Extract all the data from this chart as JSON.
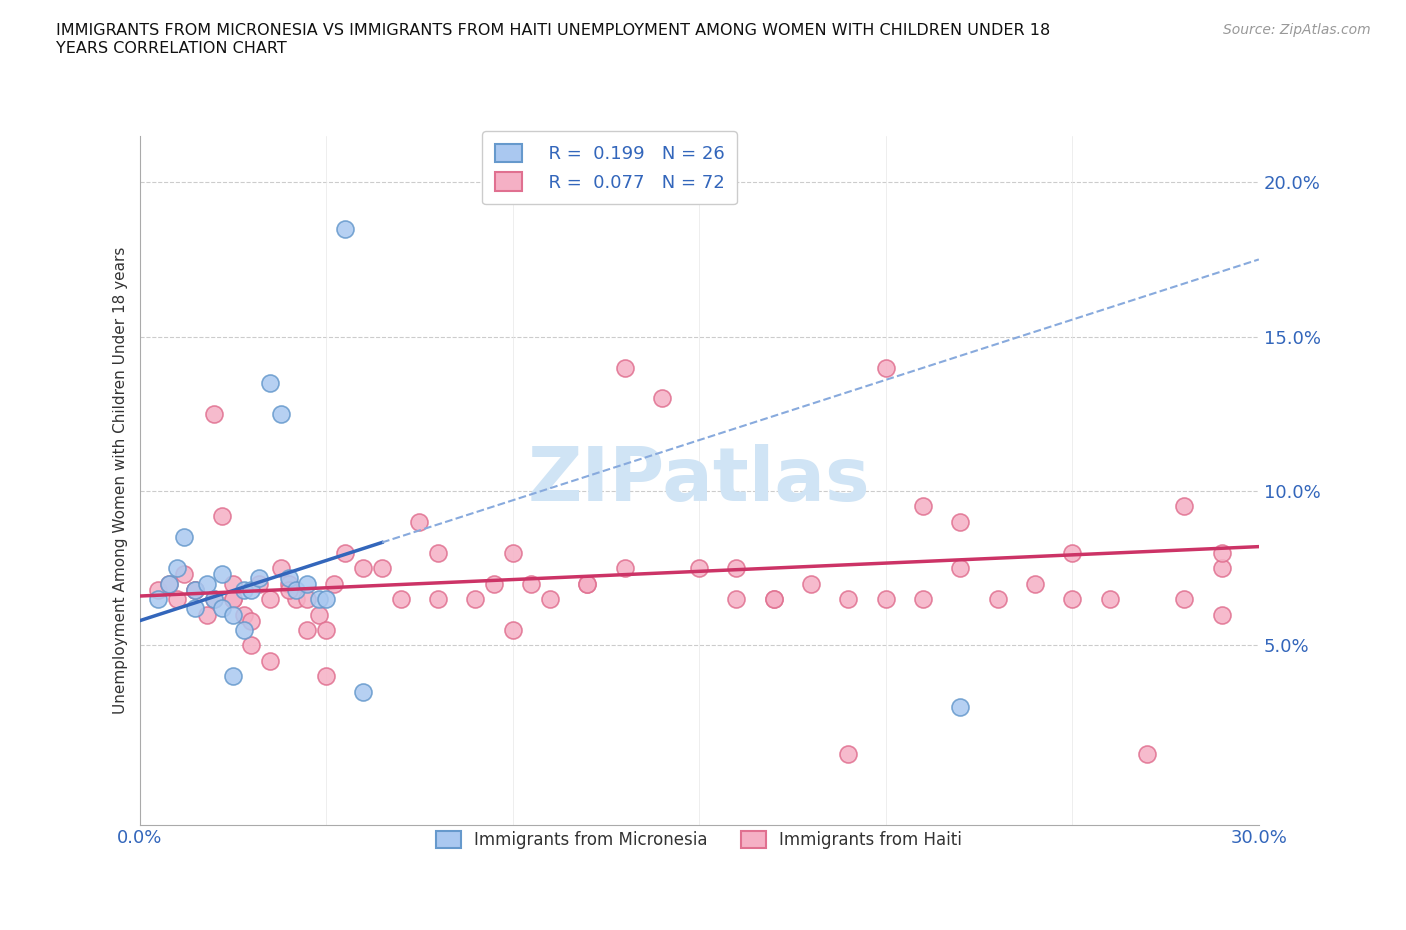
{
  "title": "IMMIGRANTS FROM MICRONESIA VS IMMIGRANTS FROM HAITI UNEMPLOYMENT AMONG WOMEN WITH CHILDREN UNDER 18\nYEARS CORRELATION CHART",
  "source": "Source: ZipAtlas.com",
  "ylabel": "Unemployment Among Women with Children Under 18 years",
  "yticks": [
    0.0,
    0.05,
    0.1,
    0.15,
    0.2
  ],
  "ytick_labels": [
    "",
    "5.0%",
    "10.0%",
    "15.0%",
    "20.0%"
  ],
  "xlim": [
    0.0,
    0.3
  ],
  "ylim": [
    -0.008,
    0.215
  ],
  "micronesia_color": "#aac8f0",
  "micronesia_edge": "#6699cc",
  "haiti_color": "#f5b0c5",
  "haiti_edge": "#e07090",
  "trend_micronesia_solid_color": "#3366bb",
  "trend_micronesia_dash_color": "#88aadd",
  "trend_haiti_color": "#cc3366",
  "watermark_color": "#d0e4f5",
  "legend_r_micronesia": "R =  0.199",
  "legend_n_micronesia": "N = 26",
  "legend_r_haiti": "R =  0.077",
  "legend_n_haiti": "N = 72",
  "micronesia_x": [
    0.005,
    0.008,
    0.01,
    0.012,
    0.015,
    0.015,
    0.018,
    0.02,
    0.022,
    0.022,
    0.025,
    0.025,
    0.028,
    0.028,
    0.03,
    0.032,
    0.035,
    0.038,
    0.04,
    0.042,
    0.045,
    0.048,
    0.05,
    0.055,
    0.06,
    0.22
  ],
  "micronesia_y": [
    0.065,
    0.07,
    0.075,
    0.085,
    0.062,
    0.068,
    0.07,
    0.065,
    0.073,
    0.062,
    0.06,
    0.04,
    0.068,
    0.055,
    0.068,
    0.072,
    0.135,
    0.125,
    0.072,
    0.068,
    0.07,
    0.065,
    0.065,
    0.185,
    0.035,
    0.03
  ],
  "haiti_x": [
    0.005,
    0.008,
    0.01,
    0.012,
    0.015,
    0.018,
    0.02,
    0.022,
    0.025,
    0.025,
    0.028,
    0.03,
    0.032,
    0.035,
    0.038,
    0.04,
    0.042,
    0.045,
    0.048,
    0.05,
    0.052,
    0.055,
    0.06,
    0.065,
    0.07,
    0.075,
    0.08,
    0.09,
    0.095,
    0.1,
    0.105,
    0.11,
    0.12,
    0.13,
    0.14,
    0.15,
    0.16,
    0.17,
    0.18,
    0.19,
    0.2,
    0.21,
    0.22,
    0.23,
    0.25,
    0.26,
    0.28,
    0.29,
    0.015,
    0.02,
    0.025,
    0.03,
    0.035,
    0.04,
    0.045,
    0.05,
    0.08,
    0.1,
    0.13,
    0.16,
    0.2,
    0.22,
    0.25,
    0.28,
    0.19,
    0.27,
    0.29,
    0.12,
    0.17,
    0.24,
    0.29,
    0.21
  ],
  "haiti_y": [
    0.068,
    0.07,
    0.065,
    0.073,
    0.068,
    0.06,
    0.065,
    0.092,
    0.065,
    0.07,
    0.06,
    0.058,
    0.07,
    0.065,
    0.075,
    0.07,
    0.065,
    0.065,
    0.06,
    0.055,
    0.07,
    0.08,
    0.075,
    0.075,
    0.065,
    0.09,
    0.08,
    0.065,
    0.07,
    0.08,
    0.07,
    0.065,
    0.07,
    0.075,
    0.13,
    0.075,
    0.065,
    0.065,
    0.07,
    0.065,
    0.065,
    0.065,
    0.075,
    0.065,
    0.08,
    0.065,
    0.065,
    0.06,
    0.068,
    0.125,
    0.065,
    0.05,
    0.045,
    0.068,
    0.055,
    0.04,
    0.065,
    0.055,
    0.14,
    0.075,
    0.14,
    0.09,
    0.065,
    0.095,
    0.015,
    0.015,
    0.075,
    0.07,
    0.065,
    0.07,
    0.08,
    0.095
  ],
  "trend_m_x0": 0.0,
  "trend_m_y0": 0.058,
  "trend_m_x1": 0.3,
  "trend_m_y1": 0.175,
  "trend_m_solid_end": 0.065,
  "trend_h_x0": 0.0,
  "trend_h_y0": 0.066,
  "trend_h_x1": 0.3,
  "trend_h_y1": 0.082
}
